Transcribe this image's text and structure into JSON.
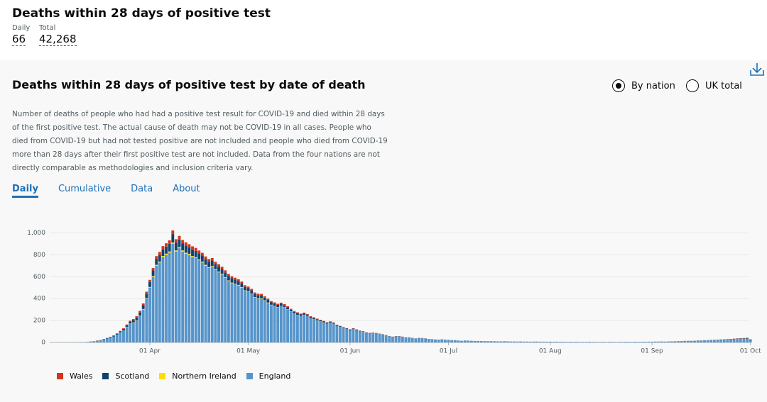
{
  "header": {
    "title": "Deaths within 28 days of positive test",
    "daily_label": "Daily",
    "daily_value": "66",
    "total_label": "Total",
    "total_value": "42,268"
  },
  "card": {
    "title": "Deaths within 28 days of positive test by date of death",
    "radio_options": [
      "By nation",
      "UK total"
    ],
    "description": "Number of deaths of people who had had a positive test result for COVID-19 and died within 28 days of the first positive test. The actual cause of death may not be COVID-19 in all cases. People who died from COVID-19 but had not tested positive are not included and people who died from COVID-19 more than 28 days after their first positive test are not included. Data from the four nations are not directly comparable as methodologies and inclusion criteria vary.",
    "tabs": [
      "Daily",
      "Cumulative",
      "Data",
      "About"
    ]
  },
  "chart_data": {
    "type": "stacked_bar",
    "categories": [
      null,
      null,
      null,
      null,
      null,
      null,
      null,
      null,
      null,
      null,
      null,
      null,
      null,
      null,
      null,
      null,
      null,
      null,
      null,
      null,
      null,
      null,
      null,
      null,
      null,
      null,
      null,
      null,
      null,
      null,
      "01 Apr",
      null,
      null,
      null,
      null,
      null,
      null,
      null,
      null,
      null,
      null,
      null,
      null,
      null,
      null,
      null,
      null,
      null,
      null,
      null,
      null,
      null,
      null,
      null,
      null,
      null,
      null,
      null,
      null,
      null,
      "01 May",
      null,
      null,
      null,
      null,
      null,
      null,
      null,
      null,
      null,
      null,
      null,
      null,
      null,
      null,
      null,
      null,
      null,
      null,
      null,
      null,
      null,
      null,
      null,
      null,
      null,
      null,
      null,
      null,
      null,
      null,
      "01 Jun",
      null,
      null,
      null,
      null,
      null,
      null,
      null,
      null,
      null,
      null,
      null,
      null,
      null,
      null,
      null,
      null,
      null,
      null,
      null,
      null,
      null,
      null,
      null,
      null,
      null,
      null,
      null,
      null,
      null,
      "01 Jul",
      null,
      null,
      null,
      null,
      null,
      null,
      null,
      null,
      null,
      null,
      null,
      null,
      null,
      null,
      null,
      null,
      null,
      null,
      null,
      null,
      null,
      null,
      null,
      null,
      null,
      null,
      null,
      null,
      null,
      null,
      "01 Aug",
      null,
      null,
      null,
      null,
      null,
      null,
      null,
      null,
      null,
      null,
      null,
      null,
      null,
      null,
      null,
      null,
      null,
      null,
      null,
      null,
      null,
      null,
      null,
      null,
      null,
      null,
      null,
      null,
      null,
      null,
      "01 Sep",
      null,
      null,
      null,
      null,
      null,
      null,
      null,
      null,
      null,
      null,
      null,
      null,
      null,
      null,
      null,
      null,
      null,
      null,
      null,
      null,
      null,
      null,
      null,
      null,
      null,
      null,
      null,
      null,
      null,
      "01 Oct"
    ],
    "series": [
      {
        "name": "Wales",
        "color": "#d4351c",
        "values": [
          0,
          0,
          0,
          0,
          0,
          0,
          0,
          0,
          0,
          0,
          0,
          0,
          0,
          0,
          1,
          1,
          1,
          2,
          2,
          3,
          4,
          5,
          6,
          7,
          8,
          10,
          12,
          14,
          16,
          18,
          20,
          22,
          25,
          28,
          30,
          30,
          32,
          35,
          32,
          32,
          30,
          30,
          28,
          28,
          27,
          26,
          25,
          25,
          24,
          23,
          22,
          22,
          20,
          20,
          19,
          18,
          18,
          17,
          16,
          15,
          15,
          14,
          14,
          13,
          13,
          12,
          12,
          11,
          11,
          10,
          10,
          9,
          9,
          8,
          8,
          8,
          7,
          7,
          6,
          6,
          6,
          5,
          5,
          5,
          4,
          4,
          4,
          4,
          3,
          3,
          3,
          3,
          3,
          3,
          2,
          2,
          2,
          2,
          2,
          2,
          2,
          2,
          1,
          1,
          1,
          1,
          1,
          1,
          1,
          1,
          1,
          1,
          1,
          1,
          1,
          1,
          1,
          1,
          1,
          1,
          1,
          1,
          1,
          1,
          0,
          0,
          0,
          0,
          0,
          0,
          0,
          0,
          0,
          0,
          0,
          0,
          0,
          0,
          0,
          0,
          0,
          0,
          0,
          0,
          0,
          0,
          0,
          0,
          0,
          0,
          0,
          0,
          0,
          0,
          0,
          0,
          0,
          0,
          0,
          0,
          0,
          0,
          0,
          0,
          0,
          0,
          0,
          0,
          0,
          0,
          0,
          0,
          0,
          0,
          0,
          0,
          0,
          0,
          0,
          0,
          0,
          0,
          0,
          0,
          0,
          0,
          0,
          0,
          0,
          0,
          0,
          0,
          0,
          0,
          1,
          0,
          1,
          1,
          0,
          1,
          1,
          1,
          1,
          1,
          1,
          2,
          1,
          2,
          2,
          2,
          2,
          2,
          3,
          2
        ]
      },
      {
        "name": "Scotland",
        "color": "#12436d",
        "values": [
          0,
          0,
          0,
          0,
          0,
          0,
          0,
          0,
          0,
          0,
          0,
          0,
          1,
          1,
          2,
          2,
          3,
          4,
          5,
          6,
          8,
          10,
          12,
          15,
          18,
          20,
          25,
          30,
          35,
          40,
          45,
          50,
          55,
          60,
          60,
          65,
          70,
          75,
          70,
          70,
          65,
          65,
          60,
          60,
          58,
          55,
          55,
          52,
          50,
          50,
          48,
          45,
          45,
          42,
          40,
          40,
          38,
          35,
          35,
          32,
          30,
          30,
          28,
          28,
          26,
          25,
          24,
          22,
          22,
          20,
          20,
          18,
          18,
          16,
          16,
          15,
          14,
          13,
          12,
          12,
          11,
          10,
          10,
          9,
          9,
          8,
          8,
          7,
          7,
          6,
          6,
          6,
          5,
          5,
          5,
          4,
          4,
          4,
          3,
          3,
          3,
          3,
          2,
          2,
          2,
          2,
          2,
          2,
          1,
          1,
          1,
          1,
          1,
          1,
          1,
          1,
          1,
          1,
          0,
          0,
          0,
          1,
          0,
          0,
          0,
          0,
          0,
          0,
          0,
          0,
          0,
          0,
          0,
          0,
          0,
          0,
          0,
          0,
          0,
          0,
          0,
          0,
          0,
          0,
          0,
          0,
          0,
          0,
          0,
          0,
          0,
          0,
          0,
          0,
          0,
          0,
          0,
          0,
          0,
          0,
          0,
          0,
          0,
          0,
          0,
          0,
          0,
          0,
          0,
          0,
          0,
          0,
          0,
          0,
          0,
          0,
          0,
          0,
          0,
          0,
          0,
          0,
          0,
          0,
          0,
          0,
          0,
          0,
          0,
          0,
          0,
          0,
          0,
          1,
          0,
          1,
          0,
          1,
          1,
          1,
          1,
          2,
          1,
          2,
          2,
          2,
          3,
          3,
          4,
          4,
          5,
          5,
          6,
          5
        ]
      },
      {
        "name": "Northern Ireland",
        "color": "#ffdd00",
        "values": [
          0,
          0,
          0,
          0,
          0,
          0,
          0,
          0,
          0,
          0,
          0,
          0,
          0,
          0,
          0,
          0,
          0,
          0,
          0,
          0,
          1,
          1,
          1,
          2,
          2,
          3,
          3,
          4,
          5,
          5,
          6,
          7,
          8,
          8,
          9,
          10,
          10,
          12,
          10,
          10,
          10,
          9,
          9,
          9,
          8,
          8,
          8,
          8,
          7,
          7,
          7,
          7,
          6,
          6,
          6,
          6,
          5,
          5,
          5,
          5,
          5,
          5,
          4,
          4,
          4,
          4,
          4,
          4,
          3,
          3,
          3,
          3,
          3,
          3,
          3,
          2,
          2,
          2,
          2,
          2,
          2,
          2,
          2,
          2,
          1,
          1,
          1,
          1,
          1,
          1,
          1,
          1,
          1,
          1,
          1,
          1,
          1,
          1,
          1,
          1,
          1,
          0,
          0,
          0,
          0,
          0,
          0,
          0,
          0,
          0,
          0,
          0,
          0,
          0,
          0,
          0,
          0,
          0,
          0,
          0,
          0,
          0,
          0,
          0,
          0,
          0,
          0,
          0,
          0,
          0,
          0,
          0,
          0,
          0,
          0,
          0,
          0,
          0,
          0,
          0,
          0,
          0,
          0,
          0,
          0,
          0,
          0,
          0,
          0,
          0,
          0,
          0,
          0,
          0,
          0,
          0,
          0,
          0,
          0,
          0,
          0,
          0,
          0,
          0,
          0,
          0,
          0,
          0,
          0,
          0,
          0,
          0,
          0,
          0,
          0,
          0,
          0,
          0,
          0,
          0,
          0,
          0,
          0,
          0,
          0,
          0,
          0,
          0,
          0,
          0,
          0,
          0,
          0,
          0,
          0,
          0,
          0,
          0,
          0,
          0,
          0,
          0,
          0,
          0,
          1,
          0,
          1,
          0,
          1,
          1,
          1,
          1,
          1,
          1
        ]
      },
      {
        "name": "England",
        "color": "#5694ca",
        "values": [
          0,
          0,
          0,
          1,
          1,
          1,
          1,
          2,
          2,
          3,
          3,
          5,
          8,
          10,
          14,
          20,
          28,
          35,
          45,
          55,
          70,
          90,
          110,
          140,
          170,
          180,
          200,
          240,
          300,
          400,
          500,
          600,
          700,
          730,
          780,
          800,
          820,
          900,
          830,
          860,
          830,
          810,
          800,
          780,
          770,
          750,
          730,
          700,
          680,
          690,
          660,
          640,
          620,
          590,
          560,
          540,
          530,
          520,
          500,
          470,
          460,
          440,
          410,
          400,
          400,
          380,
          360,
          340,
          330,
          320,
          330,
          320,
          300,
          280,
          260,
          250,
          240,
          250,
          240,
          220,
          210,
          200,
          190,
          180,
          170,
          180,
          170,
          150,
          140,
          130,
          120,
          110,
          120,
          110,
          100,
          95,
          85,
          80,
          85,
          80,
          75,
          70,
          65,
          55,
          50,
          55,
          55,
          50,
          45,
          45,
          40,
          35,
          40,
          38,
          35,
          30,
          28,
          25,
          25,
          28,
          25,
          22,
          20,
          20,
          18,
          15,
          18,
          17,
          15,
          14,
          14,
          13,
          12,
          12,
          12,
          11,
          10,
          10,
          11,
          10,
          9,
          9,
          8,
          9,
          8,
          8,
          7,
          8,
          8,
          7,
          7,
          7,
          7,
          6,
          7,
          6,
          6,
          5,
          6,
          5,
          6,
          5,
          5,
          5,
          6,
          5,
          5,
          4,
          5,
          4,
          5,
          5,
          4,
          5,
          5,
          6,
          5,
          5,
          6,
          5,
          6,
          6,
          7,
          7,
          8,
          8,
          9,
          8,
          9,
          10,
          11,
          12,
          13,
          13,
          14,
          14,
          15,
          16,
          17,
          18,
          19,
          20,
          22,
          22,
          24,
          25,
          25,
          27,
          28,
          30,
          30,
          32,
          33,
          20
        ]
      }
    ],
    "ylim": [
      0,
      1100
    ],
    "yticks": [
      0,
      200,
      400,
      600,
      800,
      {
        "value": 1000,
        "label": "1,000"
      }
    ],
    "grid": true,
    "legend": "bottom"
  }
}
